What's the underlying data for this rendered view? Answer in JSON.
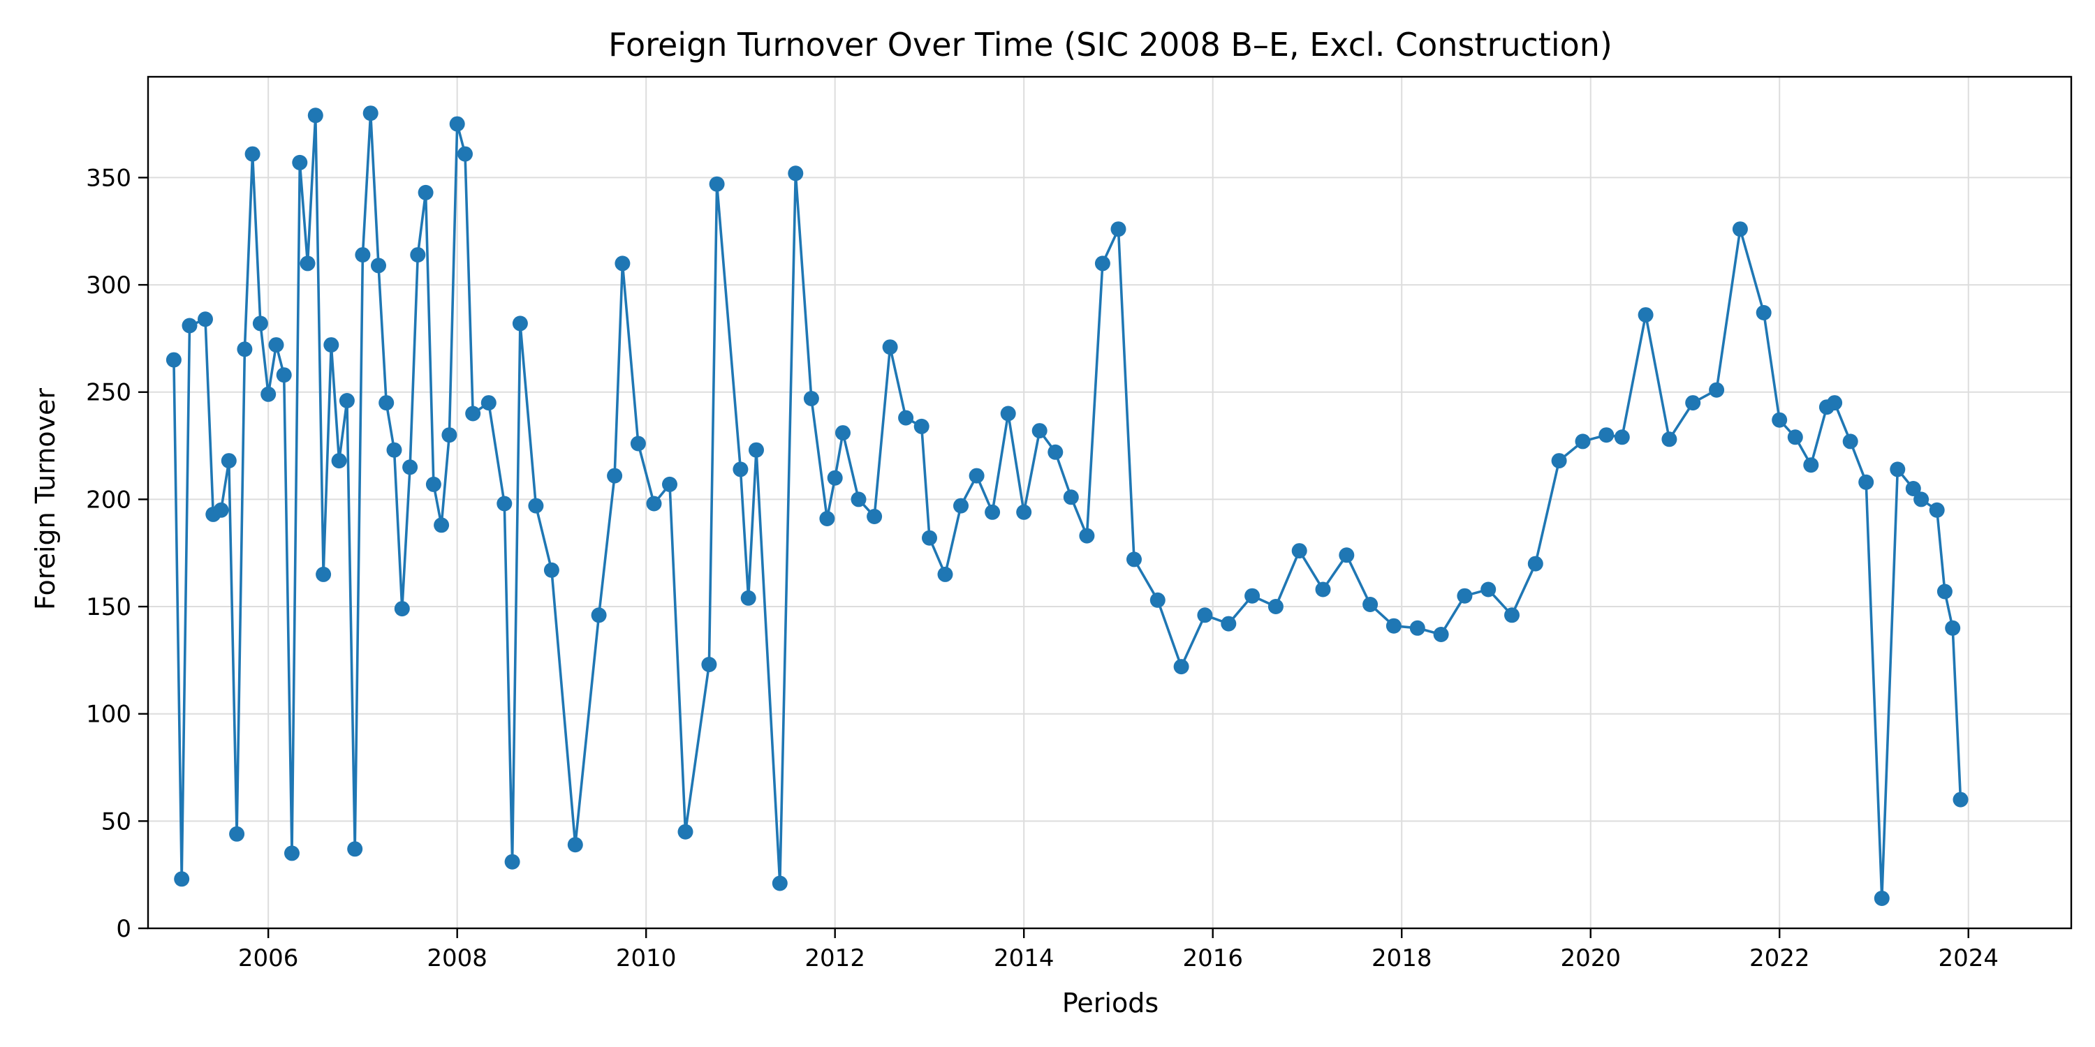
{
  "chart_data": {
    "type": "line",
    "title": "Foreign Turnover Over Time (SIC 2008 B–E, Excl. Construction)",
    "xlabel": "Periods",
    "ylabel": "Foreign Turnover",
    "x_range": [
      "2004-09-23",
      "2025-02-03"
    ],
    "ylim": [
      0,
      397
    ],
    "grid": true,
    "legend": "none",
    "marker": "circle",
    "color": "#1f77b4",
    "x_ticks": [
      "2006",
      "2008",
      "2010",
      "2012",
      "2014",
      "2016",
      "2018",
      "2020",
      "2022",
      "2024"
    ],
    "y_ticks": [
      0,
      50,
      100,
      150,
      200,
      250,
      300,
      350
    ],
    "series": [
      {
        "x": [
          "2005-01",
          "2005-02",
          "2005-03",
          "2005-05",
          "2005-06",
          "2005-07",
          "2005-08",
          "2005-09",
          "2005-10",
          "2005-11",
          "2005-12",
          "2006-01",
          "2006-02",
          "2006-03",
          "2006-04",
          "2006-05",
          "2006-06",
          "2006-07",
          "2006-08",
          "2006-09",
          "2006-10",
          "2006-11",
          "2006-12",
          "2007-01",
          "2007-02",
          "2007-03",
          "2007-04",
          "2007-05",
          "2007-06",
          "2007-07",
          "2007-08",
          "2007-09",
          "2007-10",
          "2007-11",
          "2007-12",
          "2008-01",
          "2008-02",
          "2008-03",
          "2008-05",
          "2008-07",
          "2008-08",
          "2008-09",
          "2008-11",
          "2009-01",
          "2009-04",
          "2009-07",
          "2009-09",
          "2009-10",
          "2009-12",
          "2010-02",
          "2010-04",
          "2010-06",
          "2010-09",
          "2010-10",
          "2011-01",
          "2011-02",
          "2011-03",
          "2011-06",
          "2011-08",
          "2011-10",
          "2011-12",
          "2012-01",
          "2012-02",
          "2012-04",
          "2012-06",
          "2012-08",
          "2012-10",
          "2012-12",
          "2013-01",
          "2013-03",
          "2013-05",
          "2013-07",
          "2013-09",
          "2013-11",
          "2014-01",
          "2014-03",
          "2014-05",
          "2014-07",
          "2014-09",
          "2014-11",
          "2015-01",
          "2015-03",
          "2015-06",
          "2015-09",
          "2015-12",
          "2016-03",
          "2016-06",
          "2016-09",
          "2016-12",
          "2017-03",
          "2017-06",
          "2017-09",
          "2017-12",
          "2018-03",
          "2018-06",
          "2018-09",
          "2018-12",
          "2019-03",
          "2019-06",
          "2019-09",
          "2019-12",
          "2020-03",
          "2020-05",
          "2020-08",
          "2020-11",
          "2021-02",
          "2021-05",
          "2021-08",
          "2021-11",
          "2022-01",
          "2022-03",
          "2022-05",
          "2022-07",
          "2022-08",
          "2022-10",
          "2022-12",
          "2023-02",
          "2023-04",
          "2023-06",
          "2023-07",
          "2023-09",
          "2023-10",
          "2023-11",
          "2023-12"
        ],
        "y": [
          265,
          23,
          281,
          284,
          193,
          195,
          218,
          44,
          270,
          361,
          282,
          249,
          272,
          258,
          35,
          357,
          310,
          379,
          165,
          272,
          218,
          246,
          37,
          314,
          380,
          309,
          245,
          223,
          149,
          215,
          314,
          343,
          207,
          188,
          230,
          375,
          361,
          240,
          245,
          198,
          31,
          282,
          197,
          167,
          39,
          146,
          211,
          310,
          226,
          198,
          207,
          45,
          123,
          347,
          214,
          154,
          223,
          21,
          352,
          247,
          191,
          210,
          231,
          200,
          192,
          271,
          238,
          234,
          182,
          165,
          197,
          211,
          194,
          240,
          194,
          232,
          222,
          201,
          183,
          310,
          326,
          172,
          153,
          122,
          146,
          142,
          155,
          150,
          176,
          158,
          174,
          151,
          141,
          140,
          137,
          155,
          158,
          146,
          170,
          218,
          227,
          230,
          229,
          286,
          228,
          245,
          251,
          326,
          287,
          237,
          229,
          216,
          243,
          245,
          227,
          208,
          14,
          214,
          205,
          200,
          195,
          157,
          140,
          60
        ]
      }
    ]
  }
}
